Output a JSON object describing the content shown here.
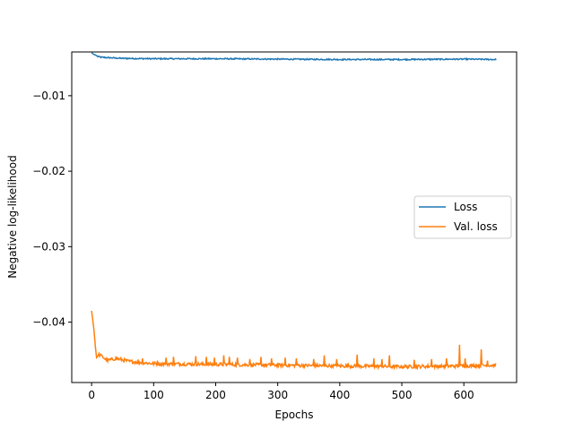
{
  "chart_data": {
    "type": "line",
    "title": "",
    "xlabel": "Epochs",
    "ylabel": "Negative log-likelihood",
    "xlim": [
      -32,
      685
    ],
    "ylim": [
      -0.048,
      -0.0042
    ],
    "xticks": [
      0,
      100,
      200,
      300,
      400,
      500,
      600
    ],
    "xtick_labels": [
      "0",
      "100",
      "200",
      "300",
      "400",
      "500",
      "600"
    ],
    "yticks": [
      -0.01,
      -0.02,
      -0.03,
      -0.04
    ],
    "ytick_labels": [
      "−0.01",
      "−0.02",
      "−0.03",
      "−0.04"
    ],
    "grid": false,
    "legend_position": "center-right",
    "series": [
      {
        "name": "Loss",
        "color": "#1f77b4",
        "x_range": [
          0,
          652
        ],
        "points": [
          [
            0,
            -0.0043
          ],
          [
            3,
            -0.0045
          ],
          [
            6,
            -0.0046
          ],
          [
            10,
            -0.0048
          ],
          [
            15,
            -0.0049
          ],
          [
            25,
            -0.00495
          ],
          [
            50,
            -0.00505
          ],
          [
            100,
            -0.0051
          ],
          [
            200,
            -0.0051
          ],
          [
            300,
            -0.00515
          ],
          [
            400,
            -0.0052
          ],
          [
            500,
            -0.0052
          ],
          [
            600,
            -0.00515
          ],
          [
            652,
            -0.0052
          ]
        ],
        "noise": 8e-05
      },
      {
        "name": "Val. loss",
        "color": "#ff7f0e",
        "x_range": [
          0,
          652
        ],
        "points": [
          [
            0,
            -0.0385
          ],
          [
            2,
            -0.0398
          ],
          [
            4,
            -0.0412
          ],
          [
            6,
            -0.0432
          ],
          [
            8,
            -0.0447
          ],
          [
            12,
            -0.0443
          ],
          [
            18,
            -0.0446
          ],
          [
            25,
            -0.0451
          ],
          [
            40,
            -0.0448
          ],
          [
            60,
            -0.0452
          ],
          [
            100,
            -0.0455
          ],
          [
            200,
            -0.0456
          ],
          [
            300,
            -0.0457
          ],
          [
            400,
            -0.0458
          ],
          [
            500,
            -0.0459
          ],
          [
            600,
            -0.0458
          ],
          [
            652,
            -0.0457
          ]
        ],
        "spikes": [
          [
            45,
            -0.0449
          ],
          [
            82,
            -0.0448
          ],
          [
            106,
            -0.0451
          ],
          [
            120,
            -0.0447
          ],
          [
            132,
            -0.0446
          ],
          [
            168,
            -0.0445
          ],
          [
            185,
            -0.0446
          ],
          [
            198,
            -0.0447
          ],
          [
            213,
            -0.0444
          ],
          [
            222,
            -0.0446
          ],
          [
            235,
            -0.0447
          ],
          [
            255,
            -0.0449
          ],
          [
            273,
            -0.0446
          ],
          [
            290,
            -0.0448
          ],
          [
            312,
            -0.0447
          ],
          [
            330,
            -0.0448
          ],
          [
            358,
            -0.0449
          ],
          [
            375,
            -0.0444
          ],
          [
            395,
            -0.0449
          ],
          [
            428,
            -0.0443
          ],
          [
            455,
            -0.0448
          ],
          [
            468,
            -0.0449
          ],
          [
            480,
            -0.0444
          ],
          [
            520,
            -0.045
          ],
          [
            548,
            -0.0449
          ],
          [
            572,
            -0.0448
          ],
          [
            593,
            -0.043
          ],
          [
            602,
            -0.0448
          ],
          [
            628,
            -0.0436
          ],
          [
            638,
            -0.0451
          ]
        ]
      }
    ]
  }
}
